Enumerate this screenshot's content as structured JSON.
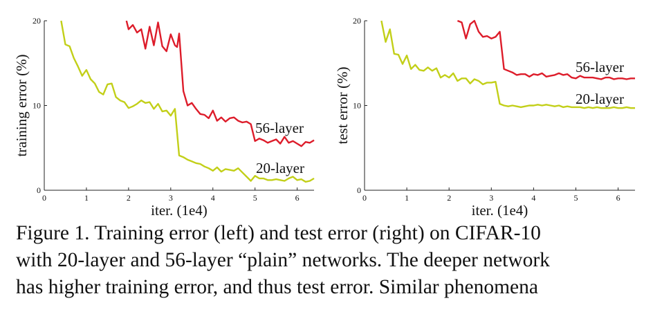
{
  "chart_data": [
    {
      "type": "line",
      "xlabel": "iter. (1e4)",
      "ylabel": "training error (%)",
      "xlim": [
        0,
        6.4
      ],
      "ylim": [
        0,
        20
      ],
      "xticks": [
        "0",
        "1",
        "2",
        "3",
        "4",
        "5",
        "6"
      ],
      "yticks": [
        "0",
        "10",
        "20"
      ],
      "series": [
        {
          "name": "56-layer",
          "color": "#dd1c2a",
          "x": [
            1.95,
            2.0,
            2.1,
            2.2,
            2.3,
            2.4,
            2.5,
            2.6,
            2.7,
            2.8,
            2.9,
            3.0,
            3.1,
            3.15,
            3.2,
            3.3,
            3.4,
            3.5,
            3.6,
            3.7,
            3.8,
            3.9,
            4.0,
            4.1,
            4.2,
            4.3,
            4.4,
            4.5,
            4.6,
            4.7,
            4.8,
            4.9,
            5.0,
            5.1,
            5.2,
            5.3,
            5.4,
            5.5,
            5.6,
            5.7,
            5.8,
            5.9,
            6.0,
            6.1,
            6.2,
            6.3,
            6.4
          ],
          "y": [
            20.0,
            19.0,
            19.5,
            18.6,
            19.0,
            16.7,
            19.3,
            17.1,
            19.8,
            17.0,
            16.4,
            18.4,
            17.1,
            16.9,
            18.5,
            11.7,
            10.0,
            10.3,
            9.6,
            9.0,
            8.9,
            8.5,
            9.4,
            8.2,
            8.6,
            8.1,
            8.5,
            8.6,
            8.2,
            8.0,
            8.1,
            7.8,
            5.8,
            6.1,
            5.9,
            5.6,
            5.8,
            6.0,
            5.5,
            6.3,
            5.6,
            5.8,
            5.5,
            5.2,
            5.7,
            5.6,
            5.9
          ]
        },
        {
          "name": "20-layer",
          "color": "#c2cf18",
          "x": [
            0.4,
            0.5,
            0.6,
            0.7,
            0.8,
            0.9,
            1.0,
            1.1,
            1.2,
            1.3,
            1.4,
            1.5,
            1.6,
            1.7,
            1.8,
            1.9,
            2.0,
            2.1,
            2.2,
            2.3,
            2.4,
            2.5,
            2.6,
            2.7,
            2.8,
            2.9,
            3.0,
            3.1,
            3.2,
            3.3,
            3.4,
            3.5,
            3.6,
            3.7,
            3.8,
            3.9,
            4.0,
            4.1,
            4.2,
            4.3,
            4.4,
            4.5,
            4.6,
            4.7,
            4.8,
            4.9,
            5.0,
            5.1,
            5.2,
            5.3,
            5.4,
            5.5,
            5.6,
            5.7,
            5.8,
            5.9,
            6.0,
            6.1,
            6.2,
            6.3,
            6.4
          ],
          "y": [
            20.0,
            17.2,
            17.0,
            15.6,
            14.6,
            13.5,
            14.2,
            13.1,
            12.6,
            11.6,
            11.3,
            12.5,
            12.6,
            11.0,
            10.6,
            10.4,
            9.7,
            9.9,
            10.2,
            10.6,
            10.3,
            10.4,
            9.6,
            10.2,
            9.3,
            9.4,
            8.8,
            9.6,
            4.1,
            3.9,
            3.6,
            3.4,
            3.2,
            3.1,
            2.8,
            2.6,
            2.3,
            2.7,
            2.2,
            2.5,
            2.4,
            2.3,
            2.6,
            2.1,
            1.6,
            1.1,
            1.7,
            1.4,
            1.4,
            1.2,
            1.2,
            1.3,
            1.2,
            1.1,
            1.4,
            1.6,
            1.2,
            1.3,
            1.0,
            1.1,
            1.4
          ]
        }
      ],
      "legend": "inline-right",
      "grid": false
    },
    {
      "type": "line",
      "xlabel": "iter. (1e4)",
      "ylabel": "test error (%)",
      "xlim": [
        0,
        6.4
      ],
      "ylim": [
        0,
        20
      ],
      "xticks": [
        "0",
        "1",
        "2",
        "3",
        "4",
        "5",
        "6"
      ],
      "yticks": [
        "0",
        "10",
        "20"
      ],
      "series": [
        {
          "name": "56-layer",
          "color": "#dd1c2a",
          "x": [
            2.2,
            2.3,
            2.4,
            2.5,
            2.6,
            2.7,
            2.8,
            2.9,
            3.0,
            3.1,
            3.2,
            3.3,
            3.4,
            3.5,
            3.6,
            3.7,
            3.8,
            3.9,
            4.0,
            4.1,
            4.2,
            4.3,
            4.4,
            4.5,
            4.6,
            4.7,
            4.8,
            4.9,
            5.0,
            5.1,
            5.2,
            5.3,
            5.4,
            5.5,
            5.6,
            5.7,
            5.8,
            5.9,
            6.0,
            6.1,
            6.2,
            6.3,
            6.4
          ],
          "y": [
            20.0,
            19.8,
            17.9,
            19.6,
            20.0,
            18.7,
            18.1,
            18.2,
            17.9,
            18.1,
            18.7,
            14.3,
            14.1,
            13.9,
            13.6,
            13.7,
            13.7,
            13.4,
            13.7,
            13.6,
            13.8,
            13.4,
            13.5,
            13.6,
            13.8,
            13.6,
            13.7,
            13.3,
            13.2,
            13.5,
            13.3,
            13.3,
            13.3,
            13.2,
            13.1,
            13.3,
            13.3,
            13.1,
            13.2,
            13.2,
            13.1,
            13.2,
            13.2
          ]
        },
        {
          "name": "20-layer",
          "color": "#c2cf18",
          "x": [
            0.4,
            0.5,
            0.6,
            0.7,
            0.8,
            0.9,
            1.0,
            1.1,
            1.2,
            1.3,
            1.4,
            1.5,
            1.6,
            1.7,
            1.8,
            1.9,
            2.0,
            2.1,
            2.2,
            2.3,
            2.4,
            2.5,
            2.6,
            2.7,
            2.8,
            2.9,
            3.0,
            3.1,
            3.2,
            3.3,
            3.4,
            3.5,
            3.6,
            3.7,
            3.8,
            3.9,
            4.0,
            4.1,
            4.2,
            4.3,
            4.4,
            4.5,
            4.6,
            4.7,
            4.8,
            4.9,
            5.0,
            5.1,
            5.2,
            5.3,
            5.4,
            5.5,
            5.6,
            5.7,
            5.8,
            5.9,
            6.0,
            6.1,
            6.2,
            6.3,
            6.4
          ],
          "y": [
            20.0,
            17.5,
            19.0,
            16.1,
            16.0,
            14.9,
            15.9,
            14.3,
            14.8,
            14.2,
            14.1,
            14.5,
            14.1,
            14.4,
            13.3,
            13.6,
            13.3,
            13.8,
            12.9,
            13.2,
            13.2,
            12.6,
            13.1,
            12.9,
            12.5,
            12.7,
            12.7,
            12.8,
            10.2,
            10.0,
            9.9,
            10.0,
            9.9,
            9.8,
            9.9,
            10.0,
            10.0,
            10.1,
            10.0,
            10.1,
            10.0,
            9.9,
            10.0,
            9.8,
            9.9,
            9.8,
            9.8,
            9.8,
            9.7,
            9.8,
            9.7,
            9.8,
            9.7,
            9.7,
            9.7,
            9.8,
            9.7,
            9.7,
            9.8,
            9.7,
            9.7
          ]
        }
      ],
      "legend": "inline-right",
      "grid": false
    }
  ],
  "caption": {
    "lines": [
      "Figure 1. Training error (left) and test error (right) on CIFAR-10",
      "with 20-layer and 56-layer “plain” networks. The deeper network",
      "has higher training error, and thus test error.  Similar phenomena"
    ]
  }
}
